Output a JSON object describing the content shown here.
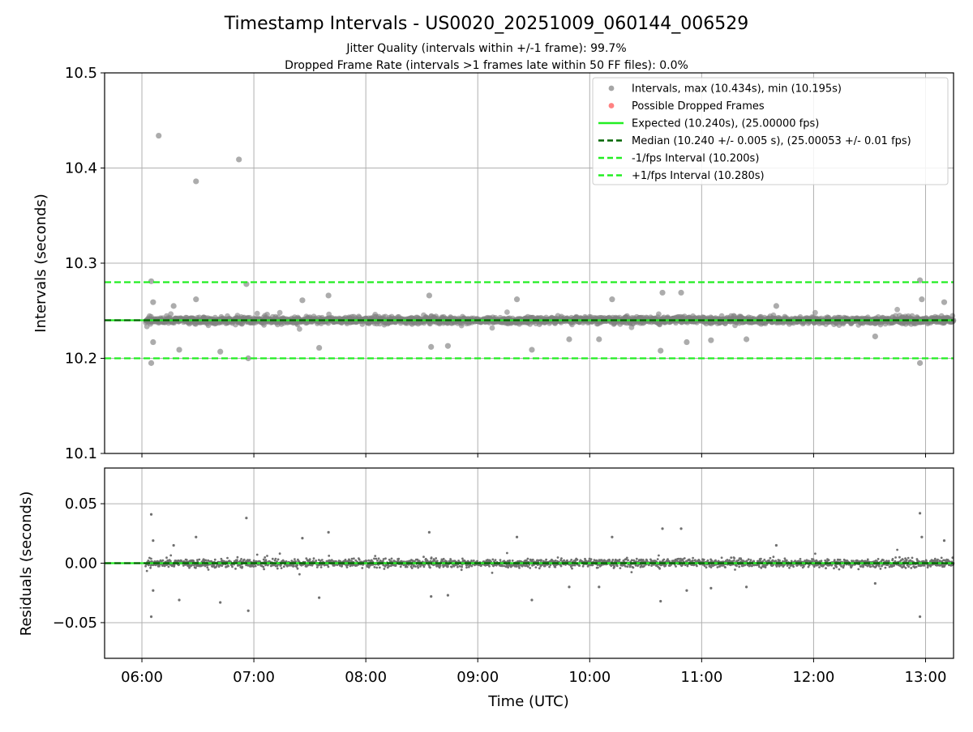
{
  "figure": {
    "title": "Timestamp Intervals - US0020_20251009_060144_006529",
    "subtitle_1": "Jitter Quality (intervals within +/-1 frame): 99.7%",
    "subtitle_2": "Dropped Frame Rate (intervals >1 frames late within 50 FF files): 0.0%"
  },
  "chart_data": [
    {
      "type": "scatter",
      "xlabel": "",
      "ylabel": "Intervals (seconds)",
      "xlim": [
        "05:40",
        "13:15"
      ],
      "ylim": [
        10.1,
        10.5
      ],
      "x_ticks": [
        "06:00",
        "07:00",
        "08:00",
        "09:00",
        "10:00",
        "11:00",
        "12:00",
        "13:00"
      ],
      "y_ticks": [
        "10.1",
        "10.2",
        "10.3",
        "10.4",
        "10.5"
      ],
      "grid": true,
      "legend_position": "top-right",
      "legend": [
        {
          "label": "Intervals, max (10.434s), min (10.195s)",
          "marker": "dot",
          "color": "#808080"
        },
        {
          "label": "Possible Dropped Frames",
          "marker": "dot",
          "color": "#ff4d4d"
        },
        {
          "label": "Expected (10.240s), (25.00000 fps)",
          "marker": "line",
          "color": "#22ee22",
          "dash": false
        },
        {
          "label": "Median (10.240 +/- 0.005 s), (25.00053 +/- 0.01 fps)",
          "marker": "line",
          "color": "#006400",
          "dash": true
        },
        {
          "label": "-1/fps Interval (10.200s)",
          "marker": "line",
          "color": "#22ee22",
          "dash": true
        },
        {
          "label": "+1/fps Interval (10.280s)",
          "marker": "line",
          "color": "#22ee22",
          "dash": true
        }
      ],
      "hlines": [
        {
          "y": 10.24,
          "color": "#22ee22",
          "dash": false
        },
        {
          "y": 10.24,
          "color": "#006400",
          "dash": true
        },
        {
          "y": 10.2,
          "color": "#22ee22",
          "dash": true
        },
        {
          "y": 10.28,
          "color": "#22ee22",
          "dash": true
        }
      ],
      "time_range": [
        "06:02",
        "13:15"
      ],
      "baseline": 10.24,
      "outliers": [
        {
          "x": "06:05",
          "y": 10.195
        },
        {
          "x": "06:05",
          "y": 10.281
        },
        {
          "x": "06:06",
          "y": 10.259
        },
        {
          "x": "06:06",
          "y": 10.217
        },
        {
          "x": "06:09",
          "y": 10.434
        },
        {
          "x": "06:17",
          "y": 10.255
        },
        {
          "x": "06:20",
          "y": 10.209
        },
        {
          "x": "06:29",
          "y": 10.386
        },
        {
          "x": "06:29",
          "y": 10.262
        },
        {
          "x": "06:42",
          "y": 10.207
        },
        {
          "x": "06:52",
          "y": 10.409
        },
        {
          "x": "06:56",
          "y": 10.278
        },
        {
          "x": "06:57",
          "y": 10.2
        },
        {
          "x": "07:26",
          "y": 10.261
        },
        {
          "x": "07:35",
          "y": 10.211
        },
        {
          "x": "07:40",
          "y": 10.266
        },
        {
          "x": "08:34",
          "y": 10.266
        },
        {
          "x": "08:35",
          "y": 10.212
        },
        {
          "x": "08:44",
          "y": 10.213
        },
        {
          "x": "09:21",
          "y": 10.262
        },
        {
          "x": "09:29",
          "y": 10.209
        },
        {
          "x": "09:49",
          "y": 10.22
        },
        {
          "x": "10:05",
          "y": 10.22
        },
        {
          "x": "10:12",
          "y": 10.262
        },
        {
          "x": "10:38",
          "y": 10.208
        },
        {
          "x": "10:39",
          "y": 10.269
        },
        {
          "x": "10:49",
          "y": 10.269
        },
        {
          "x": "10:52",
          "y": 10.217
        },
        {
          "x": "11:05",
          "y": 10.219
        },
        {
          "x": "11:24",
          "y": 10.22
        },
        {
          "x": "11:40",
          "y": 10.255
        },
        {
          "x": "12:33",
          "y": 10.223
        },
        {
          "x": "12:57",
          "y": 10.195
        },
        {
          "x": "12:57",
          "y": 10.282
        },
        {
          "x": "12:58",
          "y": 10.262
        },
        {
          "x": "13:10",
          "y": 10.259
        }
      ]
    },
    {
      "type": "scatter",
      "xlabel": "Time (UTC)",
      "ylabel": "Residuals (seconds)",
      "xlim": [
        "05:40",
        "13:15"
      ],
      "ylim": [
        -0.08,
        0.08
      ],
      "x_ticks": [
        "06:00",
        "07:00",
        "08:00",
        "09:00",
        "10:00",
        "11:00",
        "12:00",
        "13:00"
      ],
      "y_ticks": [
        "−0.05",
        "0.00",
        "0.05"
      ],
      "y_tick_values": [
        -0.05,
        0.0,
        0.05
      ],
      "grid": true,
      "hlines": [
        {
          "y": 0.0,
          "color": "#22ee22",
          "dash": false
        },
        {
          "y": 0.0,
          "color": "#006400",
          "dash": true
        }
      ]
    }
  ],
  "colors": {
    "points": "#808080",
    "expected": "#22ee22",
    "median": "#006400",
    "grid": "#b0b0b0"
  }
}
